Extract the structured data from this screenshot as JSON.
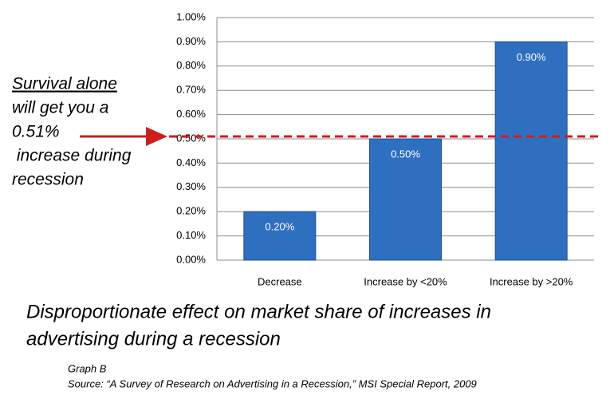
{
  "chart_data": {
    "type": "bar",
    "categories": [
      "Decrease",
      "Increase by <20%",
      "Increase by >20%"
    ],
    "values": [
      0.2,
      0.5,
      0.9
    ],
    "value_labels": [
      "0.20%",
      "0.50%",
      "0.90%"
    ],
    "color": "#2f6fc0",
    "ylim": [
      0,
      1
    ],
    "yticks": [
      {
        "value": 0,
        "label": "0.00%"
      },
      {
        "value": 0.1,
        "label": "0.10%"
      },
      {
        "value": 0.2,
        "label": "0.20%"
      },
      {
        "value": 0.3,
        "label": "0.30%"
      },
      {
        "value": 0.4,
        "label": "0.40%"
      },
      {
        "value": 0.5,
        "label": "0.50%"
      },
      {
        "value": 0.6,
        "label": "0.60%"
      },
      {
        "value": 0.7,
        "label": "0.70%"
      },
      {
        "value": 0.8,
        "label": "0.80%"
      },
      {
        "value": 0.9,
        "label": "0.90%"
      },
      {
        "value": 1,
        "label": "1.00%"
      }
    ],
    "grid": true,
    "reference_line": {
      "value": 0.51,
      "color": "#cc1f1a"
    },
    "annotation": [
      "Survival alone",
      "will get you a",
      "0.51%",
      " increase during",
      "recession"
    ],
    "caption": [
      "Disproportionate effect on market share of increases in",
      "advertising during a recession"
    ],
    "source": [
      "Graph B",
      "Source: “A Survey of Research on Advertising in a Recession,” MSI Special Report, 2009"
    ]
  }
}
